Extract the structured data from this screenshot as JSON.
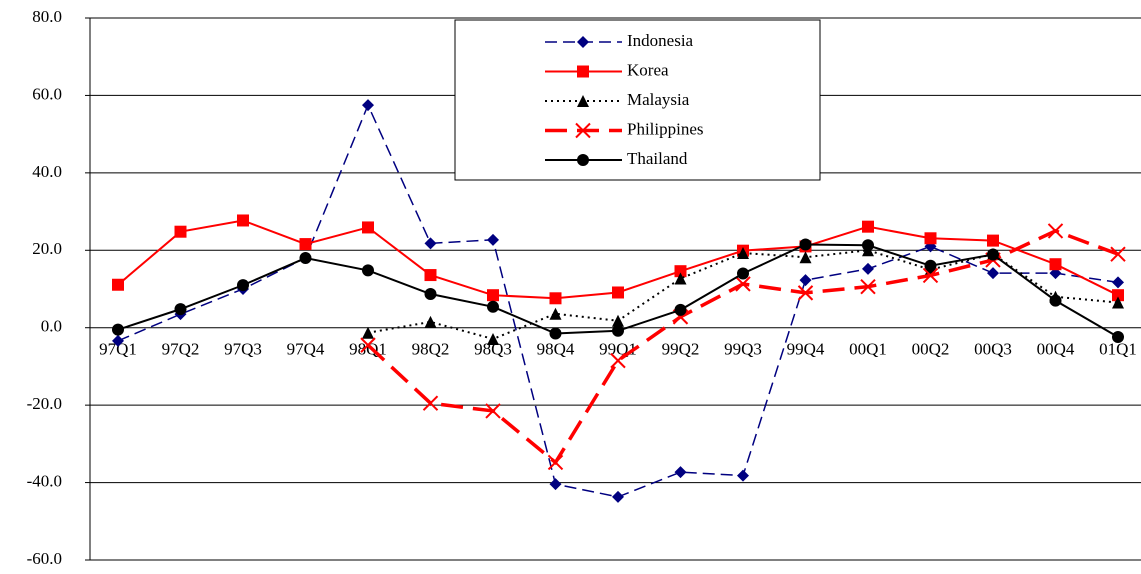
{
  "chart_data": {
    "type": "line",
    "categories": [
      "97Q1",
      "97Q2",
      "97Q3",
      "97Q4",
      "98Q1",
      "98Q2",
      "98Q3",
      "98Q4",
      "99Q1",
      "99Q2",
      "99Q3",
      "99Q4",
      "00Q1",
      "00Q2",
      "00Q3",
      "00Q4",
      "01Q1"
    ],
    "series": [
      {
        "name": "Indonesia",
        "color": "#000080",
        "line_style": "dashed",
        "marker": "diamond",
        "values": [
          -3.4,
          3.5,
          10,
          18,
          57.5,
          21.8,
          22.7,
          -40.4,
          -43.7,
          -37.3,
          -38.2,
          12.3,
          15.2,
          21,
          14.1,
          14.1,
          11.7
        ]
      },
      {
        "name": "Korea",
        "color": "#ff0000",
        "line_style": "solid",
        "marker": "square",
        "values": [
          11.1,
          24.8,
          27.7,
          21.6,
          25.9,
          13.6,
          8.4,
          7.6,
          9.1,
          14.6,
          19.9,
          21,
          26.1,
          23.1,
          22.5,
          16.4,
          8.4
        ]
      },
      {
        "name": "Malaysia",
        "color": "#000000",
        "line_style": "dotted",
        "marker": "triangle",
        "values": [
          null,
          null,
          null,
          null,
          -1.3,
          1.5,
          -2.9,
          3.6,
          1.8,
          12.7,
          19.3,
          18.2,
          20,
          15,
          19,
          8,
          6.5
        ]
      },
      {
        "name": "Philippines",
        "color": "#ff0000",
        "line_style": "long-dashed",
        "marker": "x",
        "values": [
          null,
          null,
          null,
          null,
          -4.5,
          -19.5,
          -21.5,
          -34.8,
          -8.5,
          2.8,
          11.3,
          9,
          10.6,
          13.5,
          17.5,
          25,
          19
        ]
      },
      {
        "name": "Thailand",
        "color": "#000000",
        "line_style": "solid",
        "marker": "circle",
        "values": [
          -0.5,
          4.8,
          11,
          18,
          14.8,
          8.7,
          5.4,
          -1.5,
          -0.8,
          4.6,
          14,
          21.5,
          21.3,
          16,
          18.9,
          7,
          -2.4
        ]
      }
    ],
    "ylim": [
      -60,
      80
    ],
    "yticks": [
      {
        "value": -60,
        "label": "-60.0"
      },
      {
        "value": -40,
        "label": "-40.0"
      },
      {
        "value": -20,
        "label": "-20.0"
      },
      {
        "value": 0,
        "label": "0.0"
      },
      {
        "value": 20,
        "label": "20.0"
      },
      {
        "value": 40,
        "label": "40.0"
      },
      {
        "value": 60,
        "label": "60.0"
      },
      {
        "value": 80,
        "label": "80.0"
      }
    ],
    "grid": true,
    "legend": "top"
  }
}
